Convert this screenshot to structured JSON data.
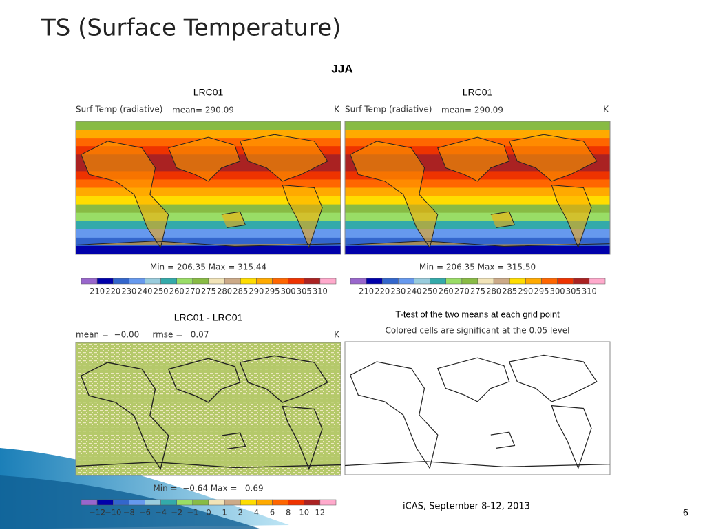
{
  "title": "TS (Surface Temperature)",
  "figure_title": "JJA",
  "panels": [
    {
      "title": "LRC01",
      "variable": "Surf Temp (radiative)",
      "stat": "mean= 290.09",
      "unit": "K",
      "range": "Min = 206.35 Max = 315.44",
      "colorbar": [
        210,
        220,
        230,
        240,
        250,
        260,
        270,
        275,
        280,
        285,
        290,
        295,
        300,
        305,
        310
      ]
    },
    {
      "title": "LRC01",
      "variable": "Surf Temp (radiative)",
      "stat": "mean= 290.09",
      "unit": "K",
      "range": "Min = 206.35 Max = 315.50",
      "colorbar": [
        210,
        220,
        230,
        240,
        250,
        260,
        270,
        275,
        280,
        285,
        290,
        295,
        300,
        305,
        310
      ]
    },
    {
      "title": "LRC01 - LRC01",
      "stat": "mean =  −0.00     rmse =   0.07",
      "unit": "K",
      "range": "Min =  −0.64 Max =   0.69",
      "colorbar": [
        "−12",
        "−10",
        "−8",
        "−6",
        "−4",
        "−2",
        "−1",
        0,
        1,
        2,
        4,
        6,
        8,
        10,
        12
      ]
    },
    {
      "title": "T-test of the two means at each grid point",
      "subtitle": "Colored cells are significant at the 0.05 level"
    }
  ],
  "footer": "iCAS, September 8-12, 2013",
  "page": "6"
}
